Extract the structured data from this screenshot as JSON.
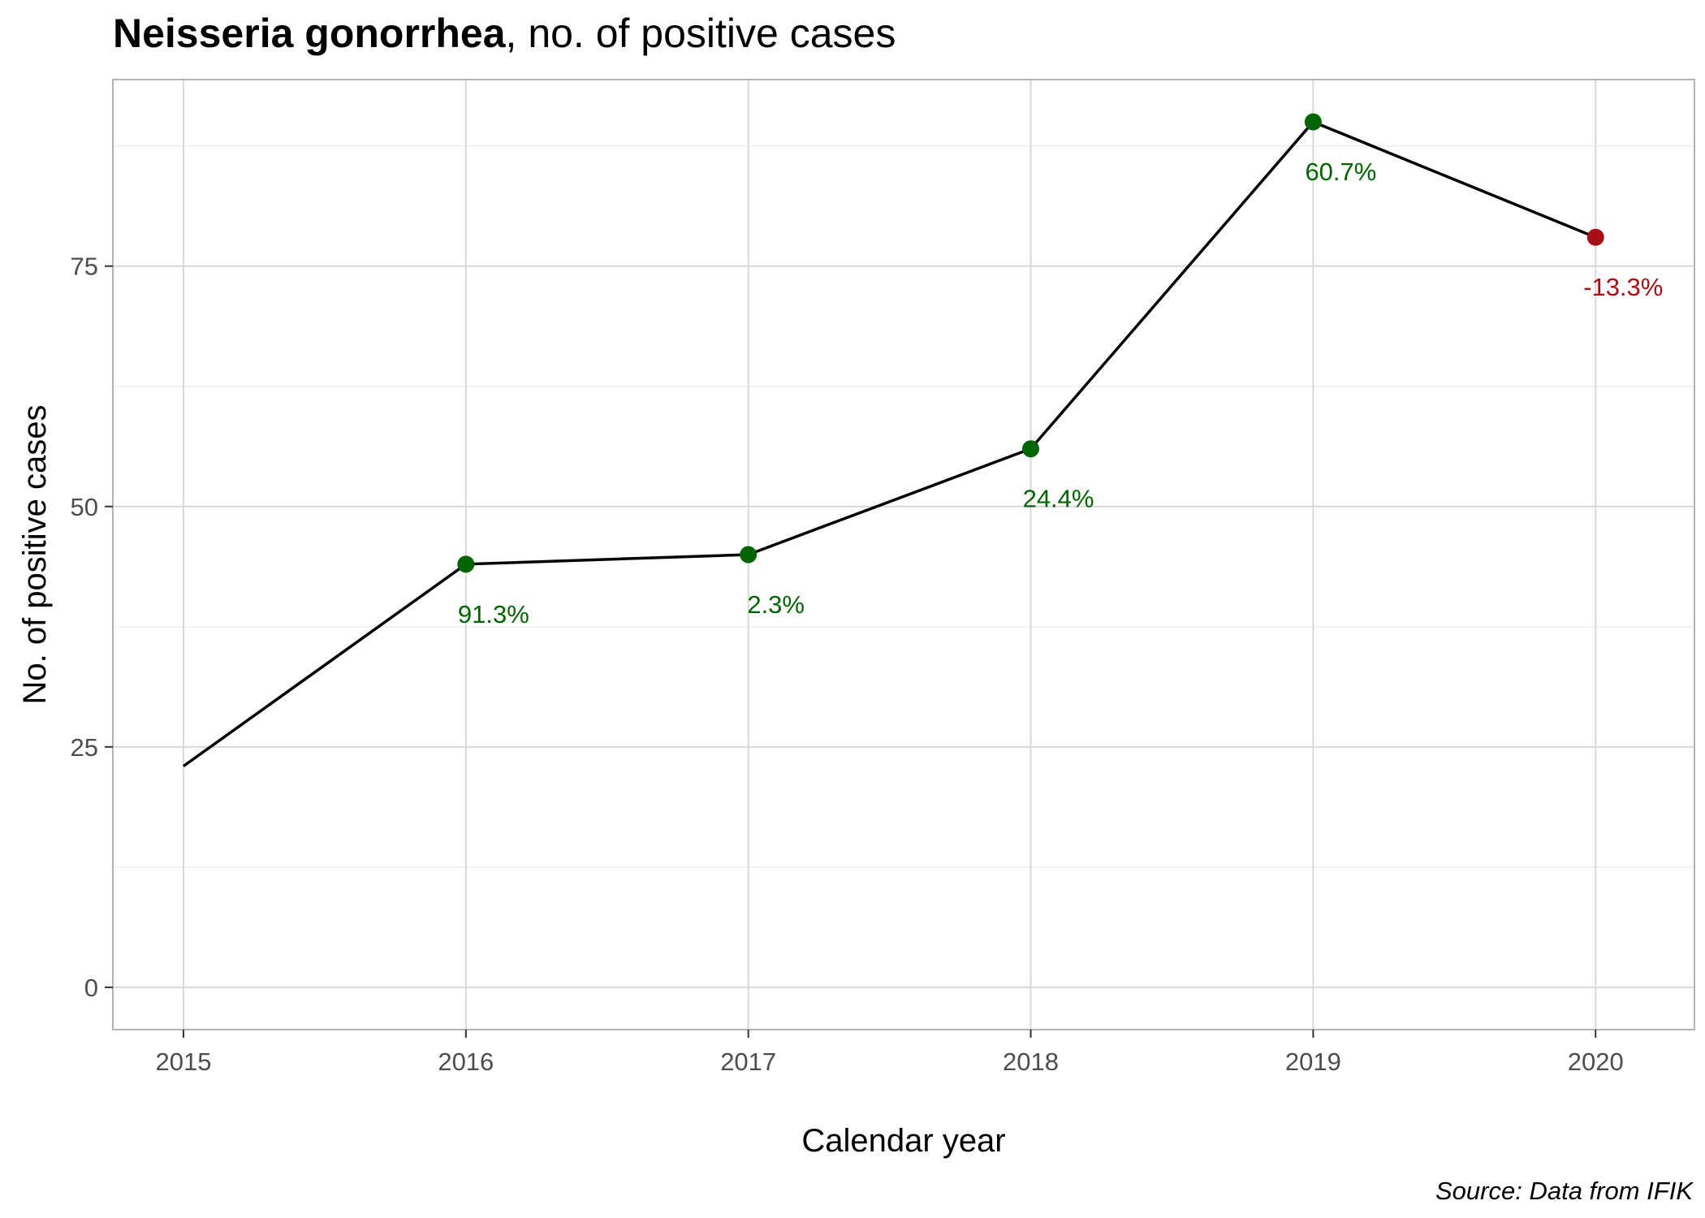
{
  "chart_data": {
    "type": "line",
    "title_bold": "Neisseria gonorrhea",
    "title_rest": ", no. of positive cases",
    "xlabel": "Calendar year",
    "ylabel": "No. of positive cases",
    "caption": "Source: Data from IFIK",
    "x": [
      2015,
      2016,
      2017,
      2018,
      2019,
      2020
    ],
    "x_tick_labels": [
      "2015",
      "2016",
      "2017",
      "2018",
      "2019",
      "2020"
    ],
    "y": [
      23,
      44,
      45,
      56,
      90,
      78
    ],
    "y_ticks": [
      0,
      25,
      50,
      75
    ],
    "y_tick_labels": [
      "0",
      "25",
      "50",
      "75"
    ],
    "ylim": [
      -4.4,
      94.4
    ],
    "xlim": [
      2014.75,
      2020.35
    ],
    "grid": true,
    "change_labels": [
      "",
      "91.3%",
      "2.3%",
      "24.4%",
      "60.7%",
      "-13.3%"
    ],
    "change_direction": [
      "",
      "up",
      "up",
      "up",
      "up",
      "down"
    ],
    "colors": {
      "line": "#000000",
      "increase": "#006400",
      "decrease": "#a50f15",
      "grid_major": "#d9d9d9",
      "grid_minor": "#ebebeb",
      "panel_border": "#b3b3b3"
    }
  }
}
